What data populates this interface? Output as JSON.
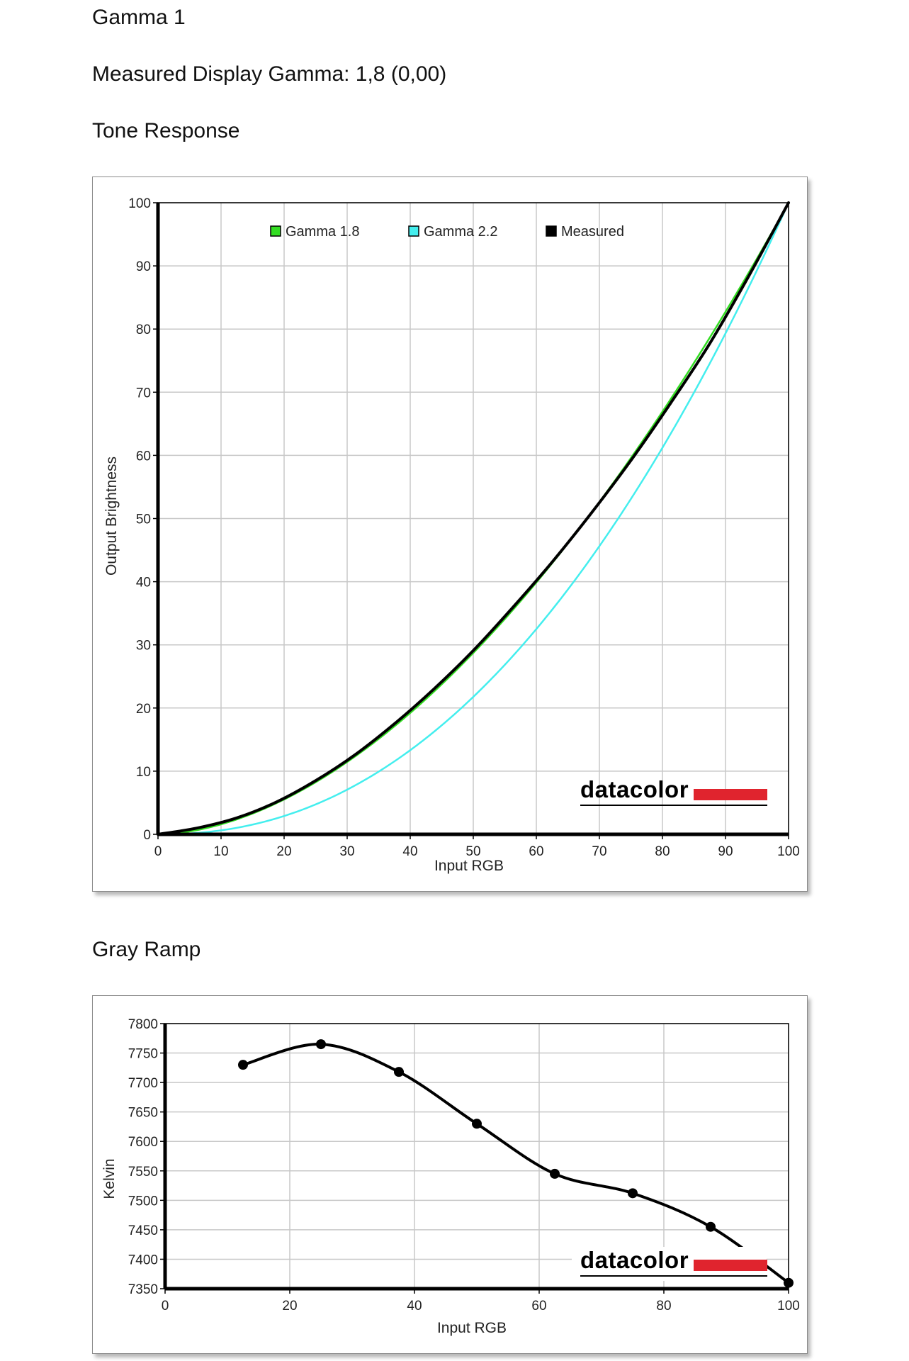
{
  "page": {
    "title": "Gamma 1",
    "measured_gamma": "Measured Display Gamma: 1,8 (0,00)",
    "section_tone": "Tone Response",
    "section_gray": "Gray Ramp",
    "logo_text": "datacolor"
  },
  "colors": {
    "gamma18": "#33dd22",
    "gamma22": "#44eeee",
    "measured": "#000000",
    "grid": "#c8c8c8",
    "brand_red": "#e0242e"
  },
  "chart_data": [
    {
      "type": "line",
      "title": "Tone Response",
      "xlabel": "Input RGB",
      "ylabel": "Output Brightness",
      "xlim": [
        0,
        100
      ],
      "ylim": [
        0,
        100
      ],
      "xticks": [
        "0",
        "10",
        "20",
        "30",
        "40",
        "50",
        "60",
        "70",
        "80",
        "90",
        "100"
      ],
      "yticks": [
        "0",
        "10",
        "20",
        "30",
        "40",
        "50",
        "60",
        "70",
        "80",
        "90",
        "100"
      ],
      "grid": true,
      "legend_position": "top-left",
      "series": [
        {
          "name": "Gamma 1.8",
          "color_key": "gamma18",
          "gamma": 1.8,
          "x": [
            0,
            5,
            10,
            15,
            20,
            25,
            30,
            35,
            40,
            45,
            50,
            55,
            60,
            65,
            70,
            75,
            80,
            85,
            90,
            95,
            100
          ],
          "y": [
            0,
            0.5,
            1.6,
            3.3,
            5.5,
            8.2,
            11.5,
            15.1,
            19.2,
            23.8,
            28.7,
            34.1,
            39.9,
            46.1,
            52.6,
            59.6,
            66.9,
            74.6,
            82.7,
            91.2,
            100
          ]
        },
        {
          "name": "Gamma 2.2",
          "color_key": "gamma22",
          "gamma": 2.2,
          "x": [
            0,
            5,
            10,
            15,
            20,
            25,
            30,
            35,
            40,
            45,
            50,
            55,
            60,
            65,
            70,
            75,
            80,
            85,
            90,
            95,
            100
          ],
          "y": [
            0,
            0.1,
            0.6,
            1.5,
            2.9,
            4.8,
            7.1,
            9.9,
            13.3,
            17.3,
            21.8,
            26.8,
            32.5,
            38.7,
            45.6,
            53.1,
            61.2,
            69.9,
            79.3,
            89.3,
            100
          ]
        },
        {
          "name": "Measured",
          "color_key": "measured",
          "x": [
            0,
            6.25,
            12.5,
            18.75,
            25,
            31.25,
            37.5,
            43.75,
            50,
            56.25,
            62.5,
            68.75,
            75,
            81.25,
            87.5,
            93.75,
            100
          ],
          "y": [
            0,
            1.0,
            2.6,
            5.1,
            8.5,
            12.6,
            17.5,
            23.0,
            29.1,
            35.9,
            43.1,
            50.9,
            59.2,
            68.2,
            77.7,
            88.5,
            100
          ]
        }
      ]
    },
    {
      "type": "line",
      "title": "Gray Ramp",
      "xlabel": "Input RGB",
      "ylabel": "Kelvin",
      "xlim": [
        0,
        100
      ],
      "ylim": [
        7350,
        7800
      ],
      "xticks": [
        "0",
        "20",
        "40",
        "60",
        "80",
        "100"
      ],
      "yticks": [
        "7350",
        "7400",
        "7450",
        "7500",
        "7550",
        "7600",
        "7650",
        "7700",
        "7750",
        "7800"
      ],
      "grid": true,
      "series": [
        {
          "color_key": "measured",
          "x": [
            12.5,
            25,
            37.5,
            50,
            62.5,
            75,
            87.5,
            100
          ],
          "y": [
            7730,
            7765,
            7718,
            7630,
            7545,
            7512,
            7455,
            7360
          ]
        }
      ]
    }
  ]
}
